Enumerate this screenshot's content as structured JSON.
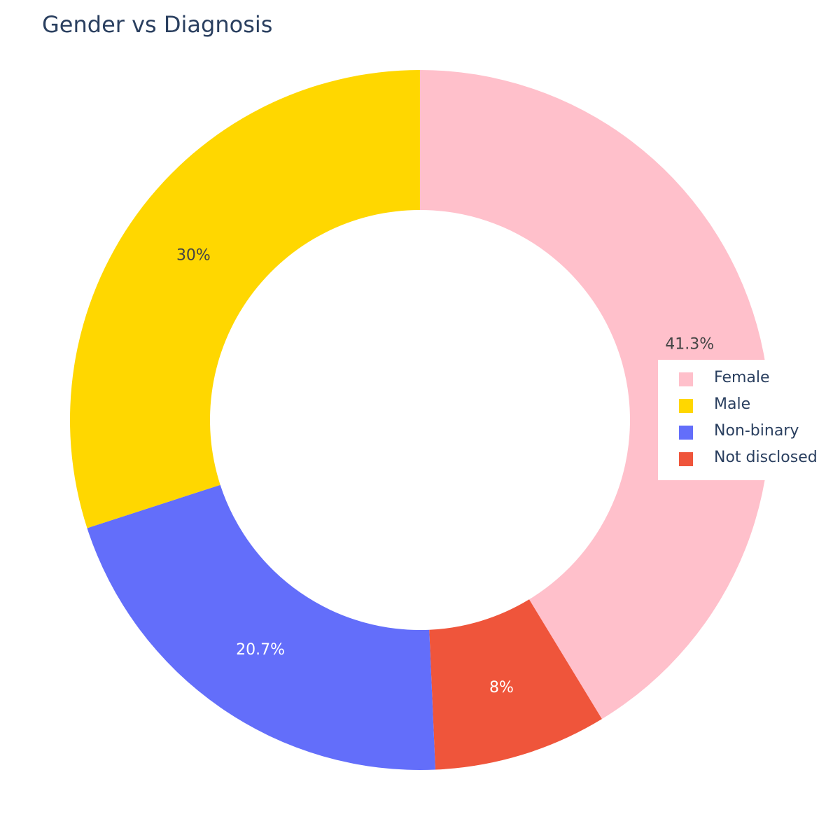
{
  "chart_data": {
    "type": "pie",
    "title": "Gender vs Diagnosis",
    "hole": true,
    "legend_position": "right",
    "slices": [
      {
        "label": "Female",
        "value": 41.3,
        "text": "41.3%",
        "color": "#FFC0CB"
      },
      {
        "label": "Not disclosed",
        "value": 8,
        "text": "8%",
        "color": "#EF553B"
      },
      {
        "label": "Non-binary",
        "value": 20.7,
        "text": "20.7%",
        "color": "#636EFA"
      },
      {
        "label": "Male",
        "value": 30,
        "text": "30%",
        "color": "#FFD700"
      }
    ],
    "legend": [
      {
        "label": "Female",
        "color": "#FFC0CB"
      },
      {
        "label": "Male",
        "color": "#FFD700"
      },
      {
        "label": "Non-binary",
        "color": "#636EFA"
      },
      {
        "label": "Not disclosed",
        "color": "#EF553B"
      }
    ]
  }
}
